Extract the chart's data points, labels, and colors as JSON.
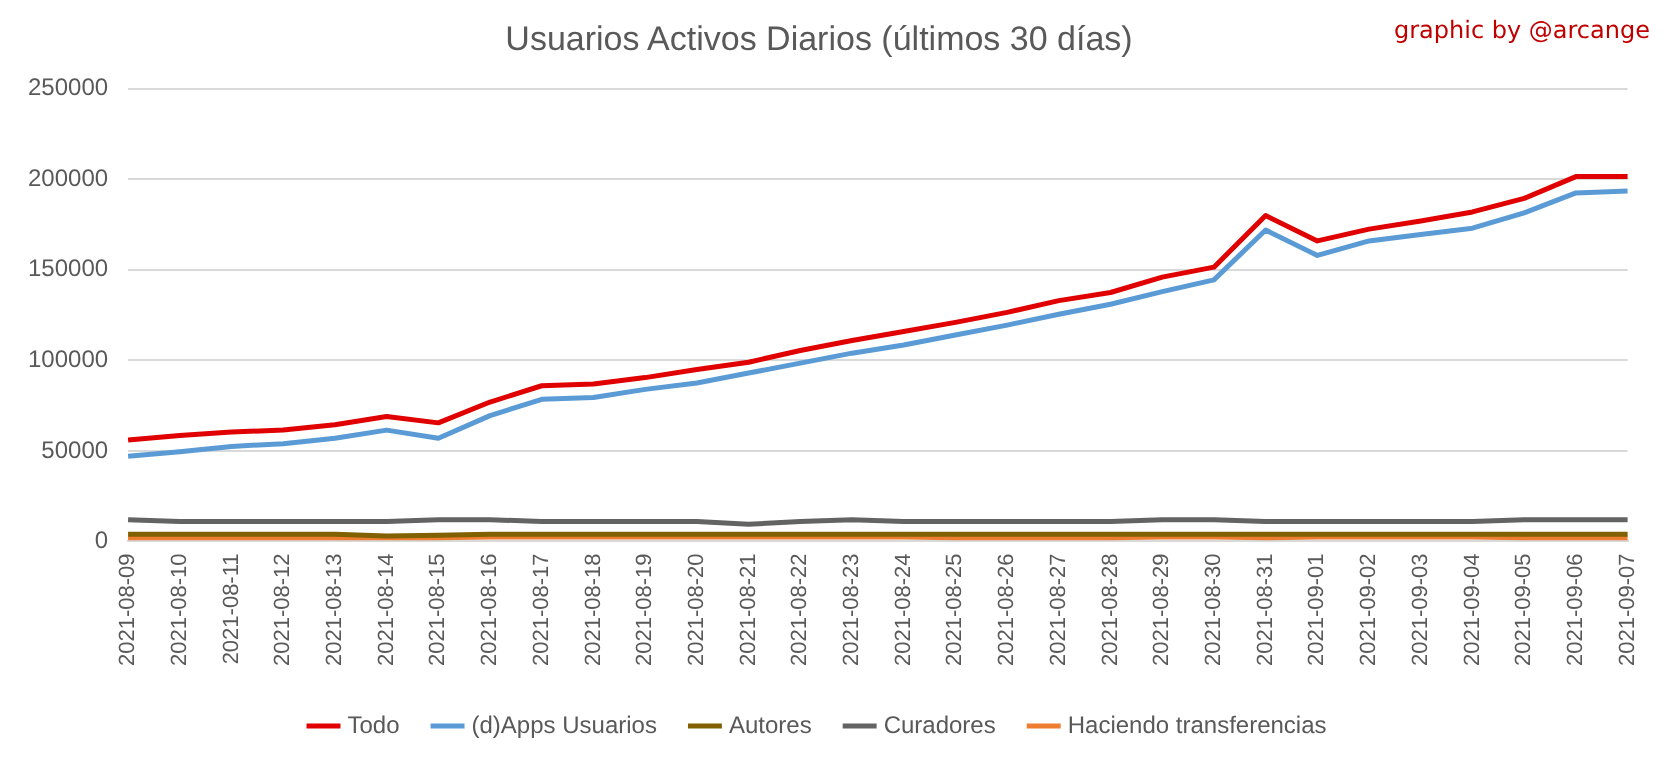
{
  "chart_data": {
    "type": "line",
    "title": "Usuarios Activos Diarios (últimos 30 días)",
    "annotations": [
      "graphic by @arcange"
    ],
    "categories": [
      "2021-08-09",
      "2021-08-10",
      "2021-08-11",
      "2021-08-12",
      "2021-08-13",
      "2021-08-14",
      "2021-08-15",
      "2021-08-16",
      "2021-08-17",
      "2021-08-18",
      "2021-08-19",
      "2021-08-20",
      "2021-08-21",
      "2021-08-22",
      "2021-08-23",
      "2021-08-24",
      "2021-08-25",
      "2021-08-26",
      "2021-08-27",
      "2021-08-28",
      "2021-08-29",
      "2021-08-30",
      "2021-08-31",
      "2021-09-01",
      "2021-09-02",
      "2021-09-03",
      "2021-09-04",
      "2021-09-05",
      "2021-09-06",
      "2021-09-07"
    ],
    "series": [
      {
        "name": "Todo",
        "color": "#e00000",
        "values": [
          56000,
          58500,
          60500,
          61500,
          64500,
          69000,
          65500,
          77000,
          86000,
          87000,
          90500,
          95000,
          99000,
          105500,
          111000,
          116000,
          121000,
          126500,
          133000,
          137500,
          146000,
          151500,
          180000,
          166000,
          172500,
          177000,
          182000,
          189500,
          201500,
          201500
        ]
      },
      {
        "name": "(d)Apps Usuarios",
        "color": "#5b9bd5",
        "values": [
          47000,
          49500,
          52500,
          54000,
          57000,
          61500,
          57000,
          69500,
          78500,
          79500,
          84000,
          87500,
          93000,
          98500,
          104000,
          108500,
          114000,
          119500,
          125500,
          131000,
          138000,
          144500,
          172000,
          158000,
          166000,
          169500,
          173000,
          181500,
          192500,
          193500
        ]
      },
      {
        "name": "Autores",
        "color": "#806000",
        "values": [
          4000,
          4000,
          4000,
          4000,
          4000,
          3000,
          3500,
          4000,
          4000,
          4000,
          4000,
          4000,
          4000,
          4000,
          4000,
          4000,
          4000,
          4000,
          4000,
          4000,
          4000,
          4000,
          4000,
          4000,
          4000,
          4000,
          4000,
          4000,
          4000,
          4000
        ]
      },
      {
        "name": "Curadores",
        "color": "#636363",
        "values": [
          12000,
          11000,
          11000,
          11000,
          11000,
          11000,
          12000,
          12000,
          11000,
          11000,
          11000,
          11000,
          9500,
          11000,
          12000,
          11000,
          11000,
          11000,
          11000,
          11000,
          12000,
          12000,
          11000,
          11000,
          11000,
          11000,
          11000,
          12000,
          12000,
          12000
        ]
      },
      {
        "name": "Haciendo transferencias",
        "color": "#ed7d31",
        "values": [
          2000,
          2000,
          2000,
          2000,
          2000,
          2000,
          2000,
          2500,
          2500,
          2500,
          2500,
          2500,
          2500,
          2500,
          2500,
          2500,
          2000,
          2000,
          2000,
          2000,
          2500,
          2500,
          2000,
          2500,
          2500,
          2500,
          2500,
          2000,
          2000,
          2000
        ]
      }
    ],
    "ylim": [
      0,
      250000
    ],
    "yticks": [
      0,
      50000,
      100000,
      150000,
      200000,
      250000
    ],
    "grid": "y",
    "legend": "bottom",
    "marker": "none",
    "line_style": "solid"
  }
}
